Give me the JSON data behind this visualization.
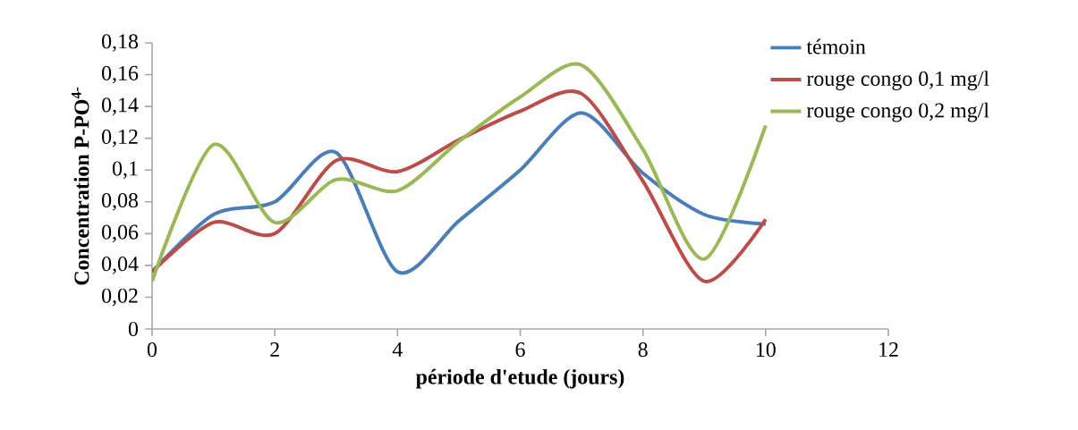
{
  "chart_data": {
    "type": "line",
    "xlabel": "**période d'etude (jours)**",
    "ylabel": "**Concentration  P-PO$^{4-}$**",
    "x": [
      0,
      1,
      2,
      3,
      4,
      5,
      6,
      7,
      8,
      9,
      10
    ],
    "series": [
      {
        "name": "témoin",
        "color": "#4a7ebb",
        "values": [
          0.036,
          0.072,
          0.08,
          0.111,
          0.036,
          0.068,
          0.1,
          0.136,
          0.098,
          0.072,
          0.066
        ]
      },
      {
        "name": "rouge congo 0,1 mg/l",
        "color": "#be4b48",
        "values": [
          0.036,
          0.067,
          0.06,
          0.106,
          0.099,
          0.119,
          0.137,
          0.148,
          0.093,
          0.03,
          0.069
        ]
      },
      {
        "name": "rouge congo 0,2 mg/l",
        "color": "#98b954",
        "values": [
          0.03,
          0.116,
          0.067,
          0.094,
          0.087,
          0.118,
          0.146,
          0.166,
          0.113,
          0.044,
          0.128
        ]
      }
    ],
    "xlim": [
      0,
      12
    ],
    "xticks": [
      0,
      2,
      4,
      6,
      8,
      10,
      12
    ],
    "ylim": [
      0,
      0.18
    ],
    "yticks": [
      0,
      {
        "value": 0.02,
        "label": "0,02"
      },
      {
        "value": 0.04,
        "label": "0,04"
      },
      {
        "value": 0.06,
        "label": "0,06"
      },
      {
        "value": 0.08,
        "label": "0,08"
      },
      {
        "value": 0.1,
        "label": "0,1"
      },
      {
        "value": 0.12,
        "label": "0,12"
      },
      {
        "value": 0.14,
        "label": "0,14"
      },
      {
        "value": 0.16,
        "label": "0,16"
      },
      {
        "value": 0.18,
        "label": "0,18"
      }
    ],
    "grid": false,
    "legend": "top right",
    "marker": "none",
    "line_style": "solid"
  }
}
